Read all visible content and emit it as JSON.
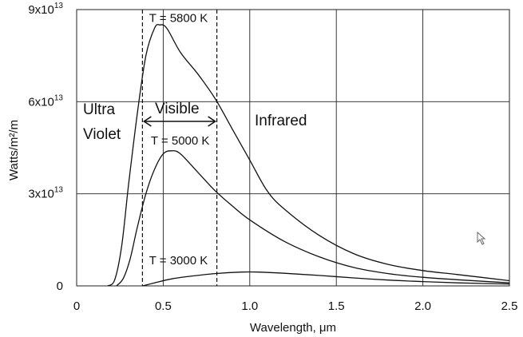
{
  "chart_data": {
    "type": "line",
    "xlabel": "Wavelength, μm",
    "ylabel": "Watts/m²/m",
    "xlim": [
      0,
      2.5
    ],
    "ylim": [
      0,
      90000000000000.0
    ],
    "x_ticks": [
      {
        "value": 0,
        "label": "0"
      },
      {
        "value": 0.5,
        "label": "0.5"
      },
      {
        "value": 1.0,
        "label": "1.0"
      },
      {
        "value": 1.5,
        "label": "1.5"
      },
      {
        "value": 2.0,
        "label": "2.0"
      },
      {
        "value": 2.5,
        "label": "2.5"
      }
    ],
    "y_ticks": [
      {
        "value": 0,
        "base": "0",
        "exp": ""
      },
      {
        "value": 30000000000000.0,
        "base": "3x10",
        "exp": "13"
      },
      {
        "value": 60000000000000.0,
        "base": "6x10",
        "exp": "13"
      },
      {
        "value": 90000000000000.0,
        "base": "9x10",
        "exp": "13"
      }
    ],
    "grid": true,
    "visible_band": [
      0.38,
      0.81
    ],
    "region_labels": {
      "ultra_1": "Ultra",
      "ultra_2": "Violet",
      "visible": "Visible",
      "infrared": "Infrared"
    },
    "series": [
      {
        "name": "T = 5800 K",
        "label_at": {
          "x": 0.4,
          "y": 86000000000000.0
        },
        "points": [
          [
            0.18,
            0
          ],
          [
            0.22,
            2000000000000.0
          ],
          [
            0.26,
            13000000000000.0
          ],
          [
            0.3,
            33000000000000.0
          ],
          [
            0.35,
            56000000000000.0
          ],
          [
            0.4,
            75000000000000.0
          ],
          [
            0.45,
            84000000000000.0
          ],
          [
            0.48,
            85000000000000.0
          ],
          [
            0.52,
            84000000000000.0
          ],
          [
            0.6,
            76000000000000.0
          ],
          [
            0.7,
            69000000000000.0
          ],
          [
            0.8,
            61000000000000.0
          ],
          [
            0.9,
            51000000000000.0
          ],
          [
            1.0,
            41000000000000.0
          ],
          [
            1.1,
            31000000000000.0
          ],
          [
            1.2,
            25000000000000.0
          ],
          [
            1.4,
            16500000000000.0
          ],
          [
            1.6,
            10500000000000.0
          ],
          [
            1.8,
            7000000000000.0
          ],
          [
            2.0,
            5000000000000.0
          ],
          [
            2.2,
            3700000000000.0
          ],
          [
            2.5,
            1700000000000.0
          ]
        ]
      },
      {
        "name": "T = 5000 K",
        "label_at": {
          "x": 0.41,
          "y": 46000000000000.0
        },
        "points": [
          [
            0.23,
            0
          ],
          [
            0.27,
            2500000000000.0
          ],
          [
            0.31,
            9000000000000.0
          ],
          [
            0.35,
            19000000000000.0
          ],
          [
            0.4,
            30000000000000.0
          ],
          [
            0.45,
            38000000000000.0
          ],
          [
            0.5,
            43000000000000.0
          ],
          [
            0.55,
            44000000000000.0
          ],
          [
            0.6,
            43000000000000.0
          ],
          [
            0.7,
            37000000000000.0
          ],
          [
            0.8,
            31000000000000.0
          ],
          [
            0.9,
            26000000000000.0
          ],
          [
            1.0,
            21500000000000.0
          ],
          [
            1.2,
            14500000000000.0
          ],
          [
            1.4,
            9500000000000.0
          ],
          [
            1.6,
            6000000000000.0
          ],
          [
            1.8,
            4000000000000.0
          ],
          [
            2.0,
            2800000000000.0
          ],
          [
            2.2,
            2000000000000.0
          ],
          [
            2.5,
            1000000000000.0
          ]
        ]
      },
      {
        "name": "T = 3000 K",
        "label_at": {
          "x": 0.4,
          "y": 7000000000000.0
        },
        "points": [
          [
            0.38,
            0
          ],
          [
            0.45,
            1000000000000.0
          ],
          [
            0.55,
            2300000000000.0
          ],
          [
            0.65,
            3100000000000.0
          ],
          [
            0.8,
            4000000000000.0
          ],
          [
            0.95,
            4500000000000.0
          ],
          [
            1.05,
            4500000000000.0
          ],
          [
            1.2,
            4100000000000.0
          ],
          [
            1.4,
            3400000000000.0
          ],
          [
            1.6,
            2600000000000.0
          ],
          [
            1.8,
            1900000000000.0
          ],
          [
            2.0,
            1400000000000.0
          ],
          [
            2.2,
            1000000000000.0
          ],
          [
            2.5,
            600000000000.0
          ]
        ]
      }
    ]
  }
}
